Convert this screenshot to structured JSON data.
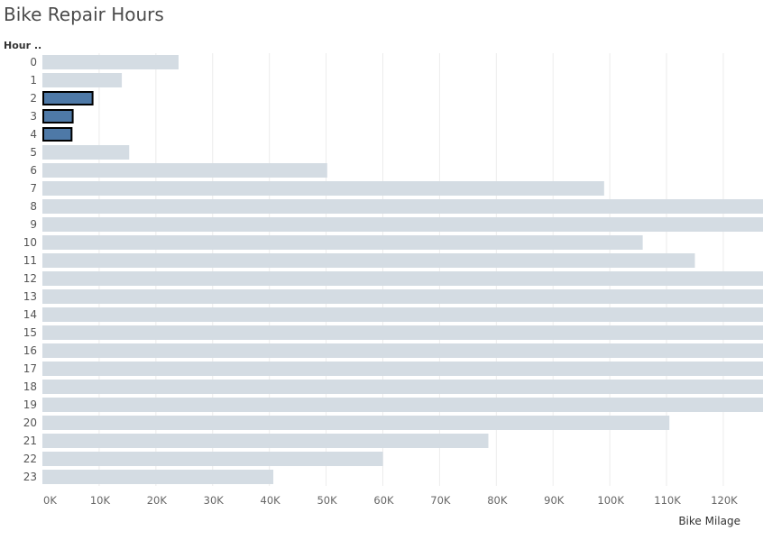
{
  "title": "Bike Repair Hours",
  "colors": {
    "bar_default": "#d4dce3",
    "bar_highlight": "#4e79a7",
    "bar_highlight_stroke": "#000000",
    "grid": "#ececec"
  },
  "chart_data": {
    "type": "bar",
    "orientation": "horizontal",
    "title": "Bike Repair Hours",
    "row_header": "Hour ..",
    "xlabel": "Bike Milage",
    "ylabel": "Hour ..",
    "xlim": [
      0,
      127000
    ],
    "grid": true,
    "categories": [
      "0",
      "1",
      "2",
      "3",
      "4",
      "5",
      "6",
      "7",
      "8",
      "9",
      "10",
      "11",
      "12",
      "13",
      "14",
      "15",
      "16",
      "17",
      "18",
      "19",
      "20",
      "21",
      "22",
      "23"
    ],
    "values": [
      24000,
      14000,
      9000,
      5500,
      5300,
      15300,
      50200,
      99000,
      127000,
      127000,
      105800,
      115000,
      127000,
      127000,
      127000,
      127000,
      127000,
      127000,
      127000,
      127000,
      110500,
      78600,
      60000,
      40700
    ],
    "highlighted": [
      "2",
      "3",
      "4"
    ],
    "xticks": [
      0,
      10000,
      20000,
      30000,
      40000,
      50000,
      60000,
      70000,
      80000,
      90000,
      100000,
      110000,
      120000
    ],
    "xtick_labels": [
      "0K",
      "10K",
      "20K",
      "30K",
      "40K",
      "50K",
      "60K",
      "70K",
      "80K",
      "90K",
      "100K",
      "110K",
      "120K"
    ]
  }
}
